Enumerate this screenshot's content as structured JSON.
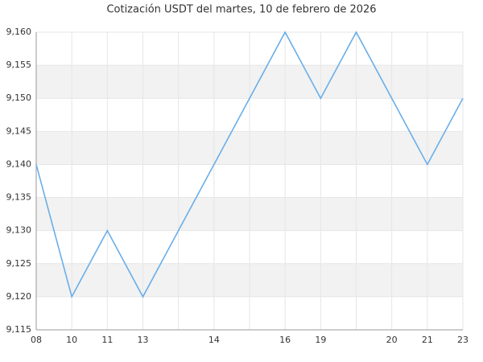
{
  "chart_data": {
    "type": "line",
    "title": "Cotización USDT del martes, 10 de febrero de 2026",
    "categories": [
      "08",
      "10",
      "11",
      "13",
      null,
      "14",
      null,
      "16",
      "19",
      null,
      "20",
      "21",
      "23"
    ],
    "series": [
      {
        "color": "#6aaee8",
        "values": [
          9.14,
          9.12,
          9.13,
          9.12,
          9.13,
          9.14,
          9.15,
          9.16,
          9.15,
          9.16,
          9.15,
          9.14,
          9.15
        ]
      }
    ],
    "ylim": [
      9.115,
      9.16
    ],
    "yticks": [
      {
        "value": 9.115,
        "label": "9,115"
      },
      {
        "value": 9.12,
        "label": "9,120"
      },
      {
        "value": 9.125,
        "label": "9,125"
      },
      {
        "value": 9.13,
        "label": "9,130"
      },
      {
        "value": 9.135,
        "label": "9,135"
      },
      {
        "value": 9.14,
        "label": "9,140"
      },
      {
        "value": 9.145,
        "label": "9,145"
      },
      {
        "value": 9.15,
        "label": "9,150"
      },
      {
        "value": 9.155,
        "label": "9,155"
      },
      {
        "value": 9.16,
        "label": "9,160"
      }
    ],
    "grid": true
  }
}
